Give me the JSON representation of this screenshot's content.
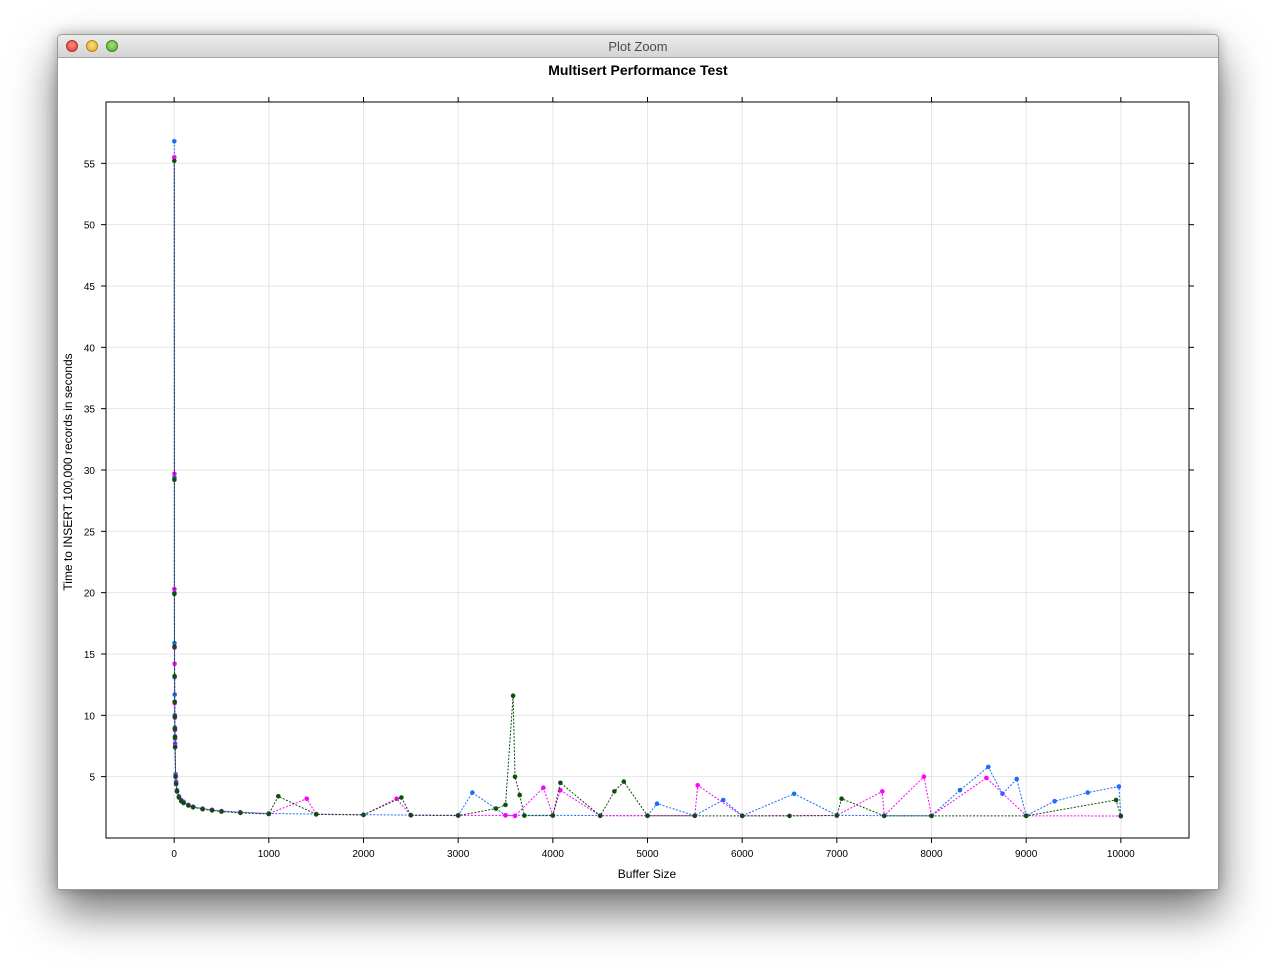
{
  "window": {
    "title": "Plot Zoom",
    "buttons": [
      "close",
      "minimize",
      "zoom"
    ]
  },
  "chart_data": {
    "type": "scatter",
    "title": "Multisert Performance Test",
    "xlabel": "Buffer Size",
    "ylabel": "Time to INSERT 100,000 records in seconds",
    "xlim": [
      -720,
      10720
    ],
    "ylim": [
      0,
      60
    ],
    "xticks": [
      0,
      1000,
      2000,
      3000,
      4000,
      5000,
      6000,
      7000,
      8000,
      9000,
      10000
    ],
    "yticks": [
      5,
      10,
      15,
      20,
      25,
      30,
      35,
      40,
      45,
      50,
      55
    ],
    "grid": true,
    "plot_style": "points connected by dotted lines",
    "colors": {
      "series1": "#1a6bff",
      "series2": "#ff00ff",
      "series3": "#0b4f0b"
    },
    "series": [
      {
        "color": "#1a6bff",
        "points": [
          [
            1,
            56.8
          ],
          [
            2,
            29.4
          ],
          [
            3,
            20.0
          ],
          [
            4,
            15.9
          ],
          [
            5,
            13.1
          ],
          [
            6,
            11.7
          ],
          [
            7,
            10.0
          ],
          [
            8,
            9.0
          ],
          [
            9,
            8.3
          ],
          [
            10,
            7.7
          ],
          [
            15,
            5.2
          ],
          [
            20,
            4.6
          ],
          [
            30,
            3.9
          ],
          [
            50,
            3.4
          ],
          [
            75,
            3.1
          ],
          [
            100,
            2.95
          ],
          [
            150,
            2.7
          ],
          [
            200,
            2.55
          ],
          [
            300,
            2.4
          ],
          [
            400,
            2.3
          ],
          [
            500,
            2.2
          ],
          [
            700,
            2.1
          ],
          [
            1000,
            2.0
          ],
          [
            1500,
            1.95
          ],
          [
            2000,
            1.9
          ],
          [
            2500,
            1.87
          ],
          [
            3000,
            1.85
          ],
          [
            3150,
            3.7
          ],
          [
            3500,
            1.85
          ],
          [
            4000,
            1.85
          ],
          [
            4500,
            1.83
          ],
          [
            5000,
            1.83
          ],
          [
            5100,
            2.8
          ],
          [
            5500,
            1.83
          ],
          [
            5800,
            3.1
          ],
          [
            6000,
            1.82
          ],
          [
            6550,
            3.6
          ],
          [
            7000,
            1.85
          ],
          [
            7500,
            1.82
          ],
          [
            8000,
            1.82
          ],
          [
            8300,
            3.9
          ],
          [
            8600,
            5.8
          ],
          [
            8750,
            3.6
          ],
          [
            8900,
            4.8
          ],
          [
            9000,
            1.82
          ],
          [
            9300,
            3.0
          ],
          [
            9650,
            3.7
          ],
          [
            9980,
            4.2
          ],
          [
            10000,
            1.8
          ]
        ]
      },
      {
        "color": "#ff00ff",
        "points": [
          [
            1,
            55.5
          ],
          [
            2,
            29.7
          ],
          [
            3,
            20.3
          ],
          [
            4,
            15.5
          ],
          [
            5,
            14.2
          ],
          [
            6,
            11.0
          ],
          [
            7,
            9.8
          ],
          [
            8,
            8.8
          ],
          [
            9,
            8.1
          ],
          [
            10,
            7.5
          ],
          [
            15,
            5.1
          ],
          [
            20,
            4.5
          ],
          [
            30,
            3.8
          ],
          [
            50,
            3.35
          ],
          [
            75,
            3.05
          ],
          [
            100,
            2.9
          ],
          [
            150,
            2.68
          ],
          [
            200,
            2.52
          ],
          [
            300,
            2.38
          ],
          [
            400,
            2.28
          ],
          [
            500,
            2.18
          ],
          [
            700,
            2.08
          ],
          [
            1000,
            1.98
          ],
          [
            1400,
            3.2
          ],
          [
            1500,
            1.94
          ],
          [
            2000,
            1.89
          ],
          [
            2350,
            3.2
          ],
          [
            2500,
            1.86
          ],
          [
            3000,
            1.84
          ],
          [
            3500,
            1.84
          ],
          [
            3600,
            1.8
          ],
          [
            3900,
            4.1
          ],
          [
            4000,
            1.84
          ],
          [
            4080,
            3.9
          ],
          [
            4500,
            1.82
          ],
          [
            5000,
            1.82
          ],
          [
            5530,
            4.3
          ],
          [
            5500,
            1.82
          ],
          [
            6000,
            1.81
          ],
          [
            7000,
            1.84
          ],
          [
            7480,
            3.8
          ],
          [
            7500,
            1.81
          ],
          [
            7920,
            5.0
          ],
          [
            8000,
            1.81
          ],
          [
            8580,
            4.9
          ],
          [
            9000,
            1.81
          ],
          [
            10000,
            1.79
          ]
        ]
      },
      {
        "color": "#0b4f0b",
        "points": [
          [
            1,
            55.2
          ],
          [
            2,
            29.2
          ],
          [
            3,
            19.9
          ],
          [
            4,
            15.6
          ],
          [
            5,
            13.2
          ],
          [
            6,
            11.1
          ],
          [
            7,
            9.9
          ],
          [
            8,
            8.9
          ],
          [
            9,
            8.2
          ],
          [
            10,
            7.4
          ],
          [
            15,
            5.0
          ],
          [
            20,
            4.4
          ],
          [
            30,
            3.8
          ],
          [
            50,
            3.3
          ],
          [
            75,
            3.0
          ],
          [
            100,
            2.85
          ],
          [
            150,
            2.65
          ],
          [
            200,
            2.5
          ],
          [
            300,
            2.35
          ],
          [
            400,
            2.25
          ],
          [
            500,
            2.15
          ],
          [
            700,
            2.05
          ],
          [
            1000,
            1.96
          ],
          [
            1100,
            3.4
          ],
          [
            1500,
            1.92
          ],
          [
            2000,
            1.88
          ],
          [
            2400,
            3.3
          ],
          [
            2500,
            1.85
          ],
          [
            3000,
            1.83
          ],
          [
            3400,
            2.4
          ],
          [
            3500,
            2.7
          ],
          [
            3580,
            11.6
          ],
          [
            3600,
            5.0
          ],
          [
            3650,
            3.5
          ],
          [
            3700,
            1.83
          ],
          [
            4000,
            1.83
          ],
          [
            4080,
            4.5
          ],
          [
            4500,
            1.81
          ],
          [
            4650,
            3.8
          ],
          [
            4750,
            4.6
          ],
          [
            5000,
            1.81
          ],
          [
            5500,
            1.81
          ],
          [
            6000,
            1.8
          ],
          [
            6500,
            1.8
          ],
          [
            7000,
            1.83
          ],
          [
            7050,
            3.2
          ],
          [
            7500,
            1.8
          ],
          [
            8000,
            1.8
          ],
          [
            9000,
            1.8
          ],
          [
            9950,
            3.1
          ],
          [
            10000,
            1.78
          ]
        ]
      }
    ]
  }
}
